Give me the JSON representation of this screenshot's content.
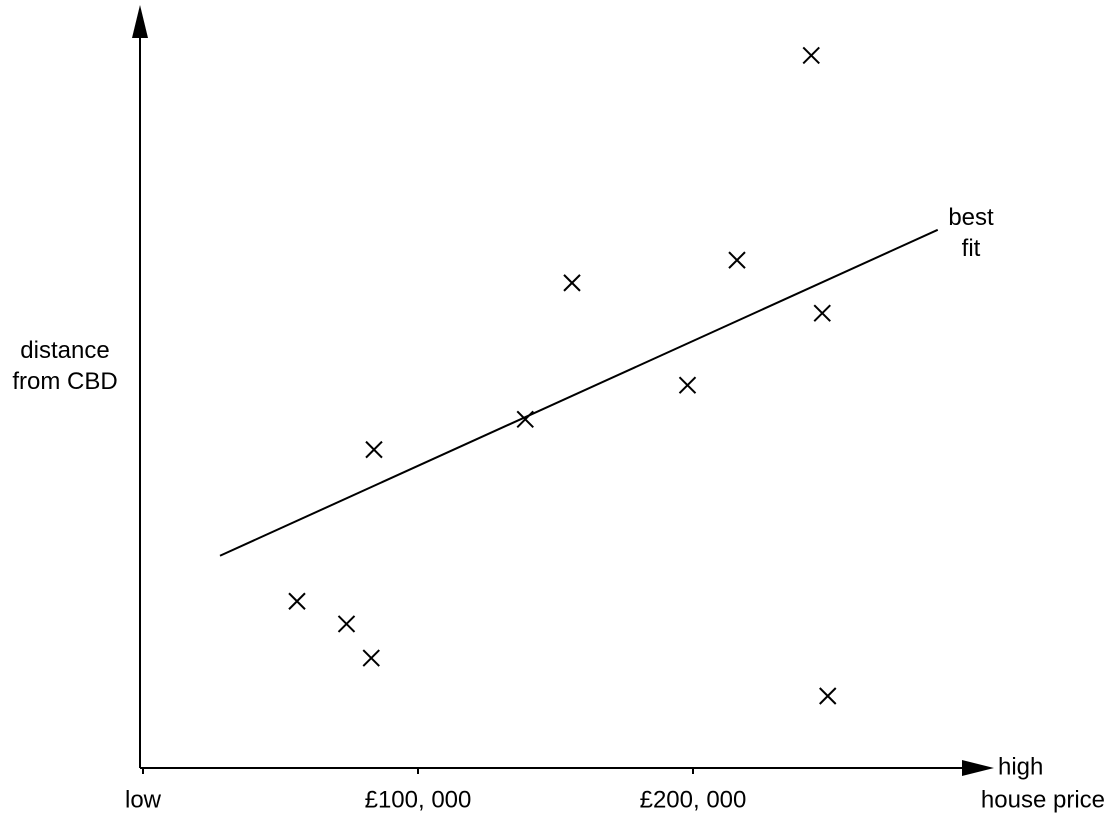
{
  "chart_data": {
    "type": "scatter",
    "ylabel": "distance from CBD",
    "xlabel": "house price",
    "x_end_label": "high",
    "xlim": [
      0,
      310000
    ],
    "ylim": [
      0,
      100
    ],
    "xticks": [
      {
        "value": 0,
        "label": "low"
      },
      {
        "value": 100000,
        "label": "£100, 000"
      },
      {
        "value": 200000,
        "label": "£200, 000"
      }
    ],
    "color": "#000000",
    "x": [
      56000,
      74000,
      83000,
      84000,
      139000,
      156000,
      198000,
      216000,
      243000,
      247000,
      249000
    ],
    "values": [
      22,
      19,
      14.5,
      42,
      46,
      64,
      50.5,
      67,
      94,
      60,
      9.5
    ],
    "best_fit": {
      "label": "best fit",
      "x": [
        28000,
        289000
      ],
      "y": [
        28,
        71
      ]
    }
  }
}
